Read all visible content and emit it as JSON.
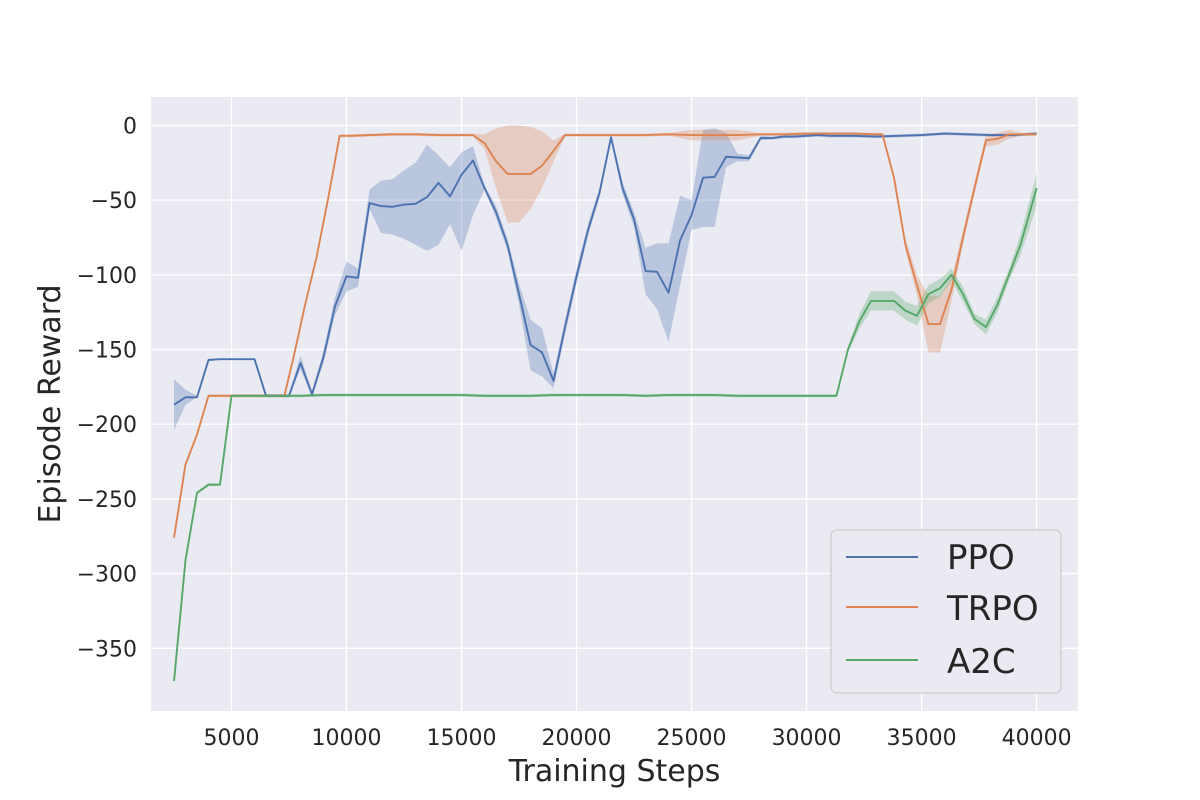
{
  "chart_data": {
    "type": "line",
    "title": "",
    "xlabel": "Training Steps",
    "ylabel": "Episode Reward",
    "xlim": [
      1500,
      41800
    ],
    "ylim": [
      -392,
      19
    ],
    "xticks": [
      5000,
      10000,
      15000,
      20000,
      25000,
      30000,
      35000,
      40000
    ],
    "yticks": [
      0,
      -50,
      -100,
      -150,
      -200,
      -250,
      -300,
      -350
    ],
    "xtick_labels": [
      "5000",
      "10000",
      "15000",
      "20000",
      "25000",
      "30000",
      "35000",
      "40000"
    ],
    "ytick_labels": [
      "0",
      "−50",
      "−100",
      "−150",
      "−200",
      "−250",
      "−300",
      "−350"
    ],
    "grid": true,
    "legend_position": "lower-right",
    "background_color": "#eaeaf2",
    "series": [
      {
        "name": "PPO",
        "color": "#4c72b0",
        "x": [
          2500,
          3000,
          3500,
          4000,
          4500,
          5000,
          5500,
          6000,
          6500,
          7000,
          7500,
          8000,
          8500,
          9000,
          9500,
          10000,
          10500,
          11000,
          11500,
          12000,
          12500,
          13000,
          13500,
          14000,
          14500,
          15000,
          15500,
          16000,
          16500,
          17000,
          17500,
          18000,
          18500,
          19000,
          19500,
          20000,
          20500,
          21000,
          21500,
          22000,
          22500,
          23000,
          23500,
          24000,
          24500,
          25000,
          25500,
          26000,
          26500,
          27000,
          27500,
          28000,
          28500,
          29000,
          29500,
          30000,
          30500,
          31000,
          31500,
          32000,
          33000,
          34000,
          35000,
          36000,
          37000,
          38000,
          39000,
          40000
        ],
        "y": [
          -187,
          -182,
          -182,
          -157,
          -156.5,
          -156.5,
          -156.5,
          -156.5,
          -181,
          -181,
          -181,
          -159,
          -180,
          -155,
          -121,
          -101,
          -102,
          -52,
          -54,
          -54.5,
          -53,
          -52.5,
          -48,
          -38.5,
          -47.5,
          -33,
          -23.5,
          -42,
          -58,
          -80,
          -113,
          -147,
          -152,
          -171,
          -135,
          -101,
          -70,
          -45,
          -8,
          -42,
          -63,
          -97.5,
          -98,
          -112,
          -77,
          -60,
          -35,
          -34.5,
          -21,
          -21.5,
          -22,
          -8.5,
          -8.5,
          -7.5,
          -7.5,
          -7,
          -6.5,
          -7,
          -7,
          -7,
          -7.5,
          -7,
          -6.5,
          -5.5,
          -6,
          -6.5,
          -6.5,
          -5.5
        ],
        "band_low": [
          -204,
          -187,
          -182,
          -158,
          -157,
          -157,
          -157,
          -157,
          -182,
          -182,
          -182,
          -163,
          -182,
          -159,
          -127,
          -111,
          -108,
          -56,
          -72,
          -73,
          -76,
          -80,
          -84,
          -80,
          -66,
          -84,
          -60,
          -43,
          -62,
          -84,
          -120,
          -164,
          -168,
          -176,
          -140,
          -106,
          -74,
          -48,
          -10,
          -46,
          -68,
          -113,
          -123,
          -145,
          -107,
          -70,
          -68,
          -68,
          -28,
          -24,
          -24,
          -10,
          -9.5,
          -8.5,
          -8.5,
          -8,
          -7.5,
          -8,
          -8,
          -8,
          -8.5,
          -8,
          -7.5,
          -6.5,
          -7,
          -7.5,
          -7.5,
          -6.5
        ],
        "band_high": [
          -170,
          -177,
          -181,
          -156,
          -156,
          -156,
          -156,
          -156,
          -180,
          -180,
          -180,
          -154,
          -178,
          -151,
          -115,
          -91,
          -96,
          -43,
          -37,
          -36,
          -30,
          -25,
          -13,
          -20,
          -28,
          -18,
          -14,
          -40,
          -54,
          -76,
          -106,
          -130,
          -136,
          -166,
          -130,
          -96,
          -66,
          -42,
          -6,
          -38,
          -58,
          -82,
          -79,
          -79,
          -47,
          -50,
          -3,
          -2,
          -5,
          -19,
          -20,
          -7,
          -7.5,
          -6.5,
          -6.5,
          -6,
          -5.5,
          -6,
          -6,
          -6,
          -6.5,
          -6,
          -5.5,
          -4.5,
          -5,
          -5.5,
          -5.5,
          -4.5
        ]
      },
      {
        "name": "TRPO",
        "color": "#dd8452",
        "x": [
          2500,
          3000,
          3500,
          4000,
          4500,
          5000,
          6000,
          7000,
          7300,
          7700,
          8200,
          8700,
          9200,
          9700,
          10200,
          11000,
          12000,
          13000,
          14000,
          15000,
          15500,
          16000,
          16500,
          17000,
          17500,
          18000,
          18500,
          19000,
          19500,
          20000,
          21000,
          22000,
          23000,
          24000,
          25000,
          26000,
          27000,
          28000,
          29000,
          30000,
          31000,
          32000,
          33000,
          33300,
          33800,
          34300,
          34800,
          35300,
          35800,
          36300,
          36800,
          37300,
          37800,
          38300,
          38800,
          39300,
          40000
        ],
        "y": [
          -276,
          -227,
          -207,
          -181,
          -181,
          -181,
          -181,
          -181,
          -181,
          -155,
          -120,
          -88,
          -49,
          -7,
          -7,
          -6.5,
          -6,
          -6,
          -6.5,
          -6.5,
          -6.5,
          -12,
          -24,
          -32.5,
          -32.5,
          -32.5,
          -27,
          -17,
          -6.5,
          -6.5,
          -6.5,
          -6.5,
          -6.5,
          -6,
          -6.5,
          -6.5,
          -6.5,
          -6,
          -6,
          -5.5,
          -5.5,
          -5.5,
          -6,
          -6,
          -35,
          -80,
          -107,
          -133,
          -133,
          -110,
          -75,
          -42,
          -10,
          -9,
          -6,
          -6,
          -6
        ],
        "band_low": [
          -277,
          -228,
          -208,
          -182,
          -182,
          -182,
          -182,
          -182,
          -182,
          -156,
          -121,
          -89,
          -50,
          -8,
          -8,
          -7.5,
          -7,
          -7,
          -7.5,
          -7.5,
          -7.5,
          -16,
          -42,
          -65,
          -65,
          -56,
          -42,
          -24,
          -7.5,
          -7.5,
          -7.5,
          -7.5,
          -7.5,
          -7,
          -10,
          -10,
          -10,
          -7,
          -7,
          -6.5,
          -6.5,
          -6.5,
          -7,
          -7,
          -37,
          -84,
          -114,
          -152,
          -152,
          -118,
          -80,
          -46,
          -14,
          -13,
          -9,
          -7,
          -7
        ],
        "band_high": [
          -275,
          -226,
          -206,
          -180,
          -180,
          -180,
          -180,
          -180,
          -180,
          -154,
          -119,
          -87,
          -48,
          -6,
          -6,
          -5.5,
          -5,
          -5,
          -5.5,
          -5.5,
          -5.5,
          -6,
          -2,
          0,
          0,
          -1,
          -4,
          -10,
          -5.5,
          -5.5,
          -5.5,
          -5.5,
          -5.5,
          -5,
          -3,
          -3,
          -3,
          -5,
          -5,
          -4.5,
          -4.5,
          -4.5,
          -5,
          -5,
          -33,
          -76,
          -100,
          -114,
          -114,
          -102,
          -70,
          -38,
          -6,
          -5,
          -3,
          -5,
          -5
        ]
      },
      {
        "name": "A2C",
        "color": "#55a868",
        "x": [
          2500,
          3000,
          3500,
          4000,
          4500,
          5000,
          6000,
          7000,
          8000,
          9000,
          10000,
          11000,
          12000,
          13000,
          14000,
          15000,
          16000,
          17000,
          18000,
          19000,
          20000,
          21000,
          22000,
          23000,
          24000,
          25000,
          26000,
          27000,
          28000,
          29000,
          30000,
          31000,
          31300,
          31800,
          32300,
          32800,
          33300,
          33800,
          34300,
          34800,
          35300,
          35800,
          36300,
          36800,
          37300,
          37800,
          38300,
          38800,
          39300,
          40000
        ],
        "y": [
          -372,
          -291,
          -246,
          -240.5,
          -240.5,
          -181,
          -181,
          -181,
          -181,
          -180.5,
          -180.5,
          -180.5,
          -180.5,
          -180.5,
          -180.5,
          -180.5,
          -181,
          -181,
          -181,
          -180.5,
          -180.5,
          -180.5,
          -180.5,
          -181,
          -180.5,
          -180.5,
          -180.5,
          -181,
          -181,
          -181,
          -181,
          -181,
          -181,
          -150,
          -131,
          -117.5,
          -117.5,
          -117.5,
          -124,
          -127.5,
          -113,
          -109,
          -100,
          -113,
          -129.5,
          -135,
          -120,
          -100,
          -80,
          -42
        ],
        "band_low": [
          -373,
          -292,
          -247,
          -241.5,
          -241.5,
          -182,
          -182,
          -182,
          -182,
          -181.5,
          -181.5,
          -181.5,
          -181.5,
          -181.5,
          -181.5,
          -181.5,
          -182,
          -182,
          -182,
          -181.5,
          -181.5,
          -181.5,
          -181.5,
          -182,
          -181.5,
          -181.5,
          -181.5,
          -182,
          -182,
          -182,
          -182,
          -182,
          -182,
          -152,
          -136,
          -124,
          -124,
          -124,
          -130,
          -134,
          -119,
          -115,
          -104,
          -118,
          -133,
          -140,
          -125,
          -104,
          -87,
          -54
        ],
        "band_high": [
          -371,
          -290,
          -245,
          -239.5,
          -239.5,
          -180,
          -180,
          -180,
          -180,
          -179.5,
          -179.5,
          -179.5,
          -179.5,
          -179.5,
          -179.5,
          -179.5,
          -180,
          -180,
          -180,
          -179.5,
          -179.5,
          -179.5,
          -179.5,
          -180,
          -179.5,
          -179.5,
          -179.5,
          -180,
          -180,
          -180,
          -180,
          -180,
          -180,
          -148,
          -126,
          -111,
          -111,
          -111,
          -118,
          -121,
          -107,
          -103,
          -96,
          -108,
          -126,
          -130,
          -115,
          -96,
          -73,
          -32
        ]
      }
    ]
  }
}
